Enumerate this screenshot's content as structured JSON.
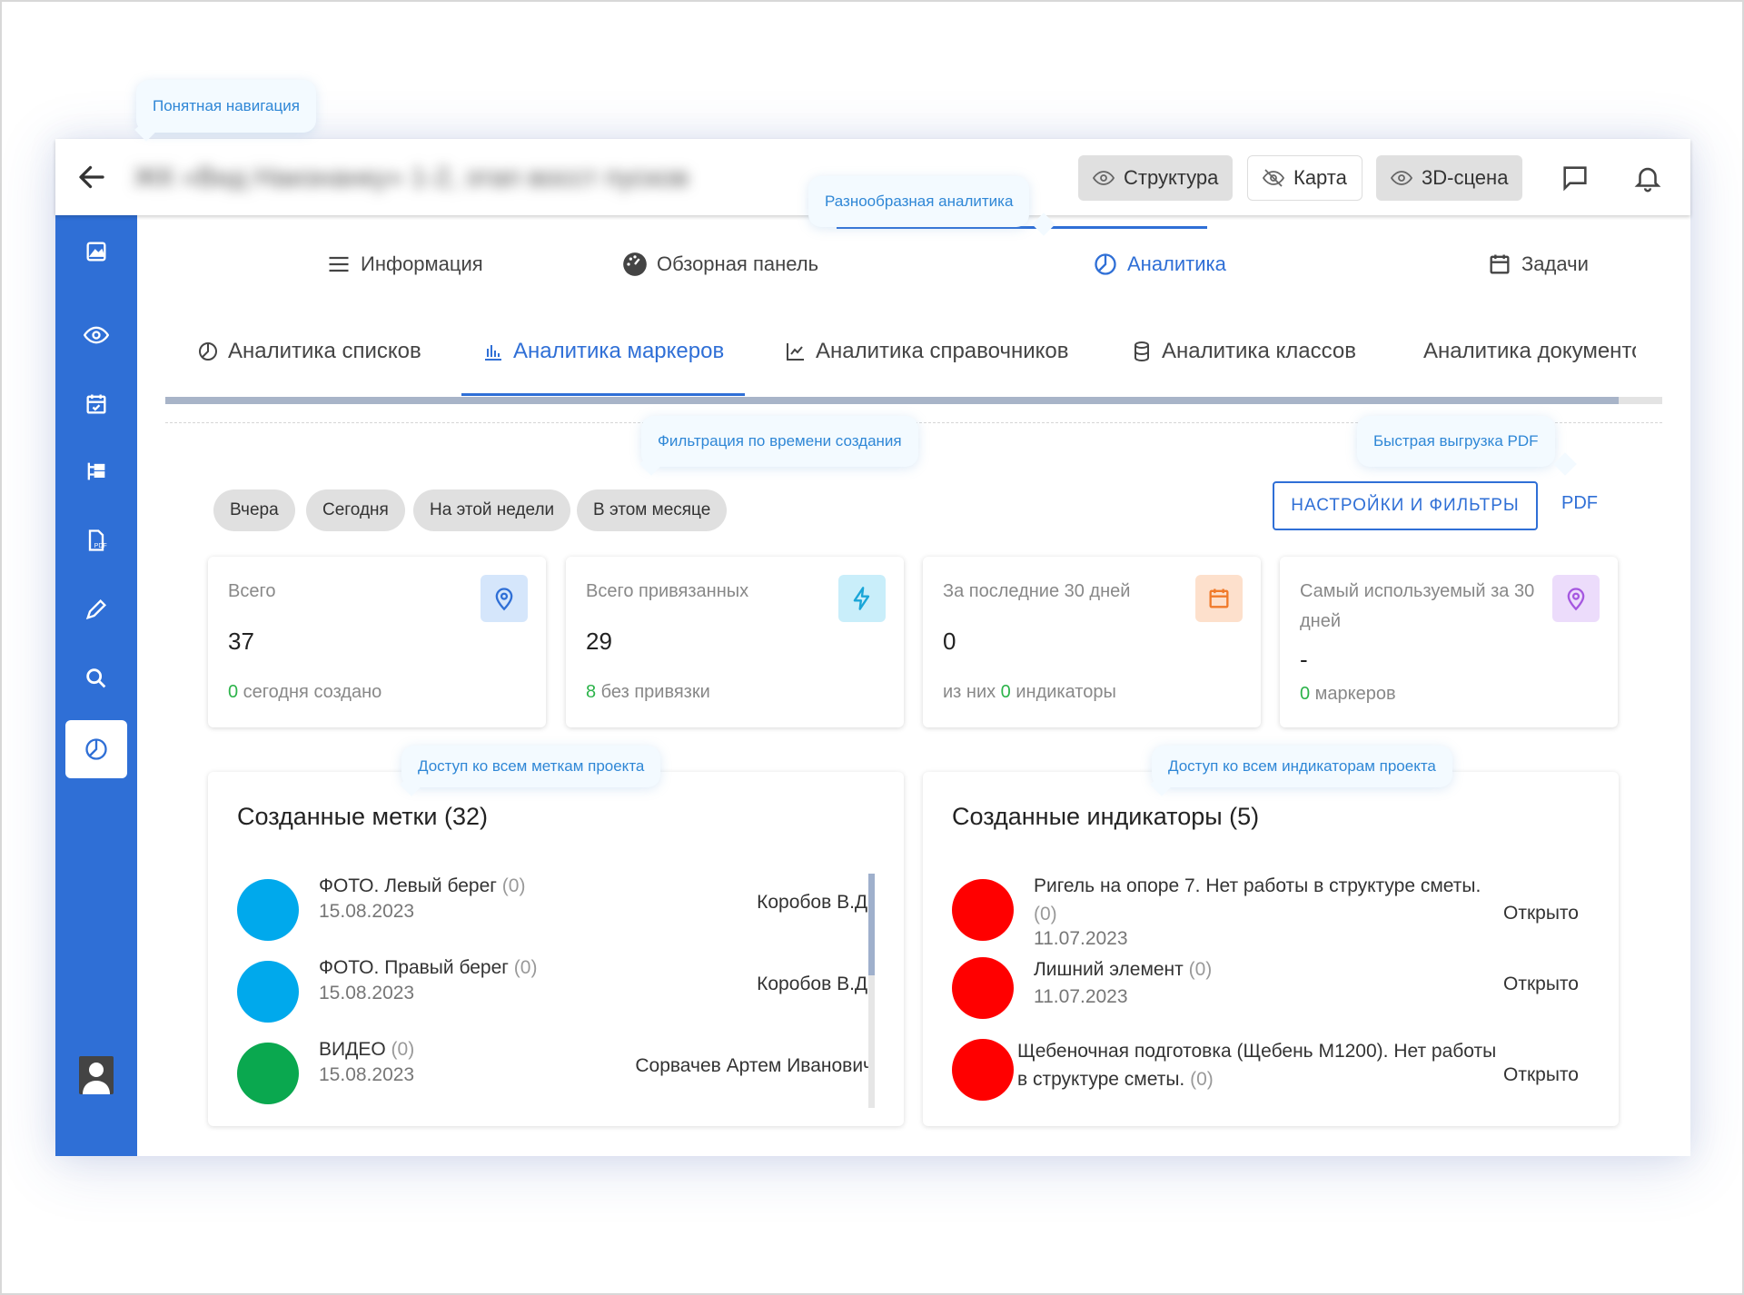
{
  "header": {
    "project_title": "ЖК «Вид Наизнанку» 1-2, этап восст пусков",
    "buttons": [
      {
        "label": "Структура",
        "icon": "eye-icon"
      },
      {
        "label": "Карта",
        "icon": "eye-off-icon"
      },
      {
        "label": "3D-сцена",
        "icon": "eye-icon"
      }
    ]
  },
  "sidebar": {
    "items": [
      "image-icon",
      "eye-icon",
      "calendar-check-icon",
      "tree-structure-icon",
      "pdf-file-icon",
      "pencil-icon",
      "search-icon",
      "pie-chart-icon"
    ]
  },
  "tabs_main": [
    {
      "label": "Информация",
      "icon": "menu-icon"
    },
    {
      "label": "Обзорная панель",
      "icon": "dashboard-icon"
    },
    {
      "label": "Аналитика",
      "icon": "pie-chart-icon",
      "active": true
    },
    {
      "label": "Задачи",
      "icon": "calendar-icon"
    }
  ],
  "tabs_analytics": [
    {
      "label": "Аналитика списков",
      "icon": "pie-chart-icon"
    },
    {
      "label": "Аналитика маркеров",
      "icon": "bar-chart-icon",
      "active": true
    },
    {
      "label": "Аналитика справочников",
      "icon": "line-chart-icon"
    },
    {
      "label": "Аналитика классов",
      "icon": "database-icon"
    },
    {
      "label": "Аналитика документо",
      "icon": "document-icon"
    }
  ],
  "filters": {
    "chips": [
      "Вчера",
      "Сегодня",
      "На этой недели",
      "В этом месяце"
    ],
    "settings_button": "НАСТРОЙКИ И ФИЛЬТРЫ",
    "pdf_button": "PDF"
  },
  "stats": [
    {
      "label": "Всего",
      "value": "37",
      "foot_num": "0",
      "foot_pre": "",
      "foot_text": " сегодня создано",
      "icon": "map-pin-icon",
      "icon_bg": "#d5e6fb",
      "icon_color": "#2f6fd6"
    },
    {
      "label": "Всего привязанных",
      "value": "29",
      "foot_num": "8",
      "foot_pre": "",
      "foot_text": " без привязки",
      "icon": "lightning-icon",
      "icon_bg": "#c9eefa",
      "icon_color": "#1aa6d8"
    },
    {
      "label": "За последние 30 дней",
      "value": "0",
      "foot_num": "0",
      "foot_pre": "из них ",
      "foot_text": " индикаторы",
      "icon": "calendar-icon",
      "icon_bg": "#fde0cc",
      "icon_color": "#f07a2a"
    },
    {
      "label": "Самый используемый за 30 дней",
      "value": "-",
      "foot_num": "0",
      "foot_pre": "",
      "foot_text": " маркеров",
      "icon": "map-pin-icon",
      "icon_bg": "#ecdcfb",
      "icon_color": "#a557e0"
    }
  ],
  "marks": {
    "title": "Созданные метки (32)",
    "items": [
      {
        "name": "ФОТО. Левый берег",
        "count": "(0)",
        "date": "15.08.2023",
        "author": "Коробов В.Д.",
        "color": "#00a9ec"
      },
      {
        "name": "ФОТО. Правый берег",
        "count": "(0)",
        "date": "15.08.2023",
        "author": "Коробов В.Д.",
        "color": "#00a9ec"
      },
      {
        "name": "ВИДЕО",
        "count": "(0)",
        "date": "15.08.2023",
        "author": "Сорвачев Артем Иванович",
        "color": "#0aa84f"
      }
    ]
  },
  "indicators": {
    "title": "Созданные индикаторы (5)",
    "items": [
      {
        "name": "Ригель на опоре 7. Нет работы в структуре сметы.",
        "count": "(0)",
        "date": "11.07.2023",
        "status": "Открыто",
        "color": "#ff0000"
      },
      {
        "name": "Лишний элемент",
        "count": "(0)",
        "date": "11.07.2023",
        "status": "Открыто",
        "color": "#ff0000"
      },
      {
        "name": "Щебеночная подготовка (Щебень М1200). Нет работы в структуре сметы.",
        "count": "(0)",
        "date": "",
        "status": "Открыто",
        "color": "#ff0000"
      }
    ]
  },
  "callouts": {
    "navigation": "Понятная навигация",
    "analytics": "Разнообразная аналитика",
    "time_filter": "Фильтрация по времени создания",
    "pdf_export": "Быстрая выгрузка PDF",
    "marks_access": "Доступ ко всем меткам проекта",
    "indicators_access": "Доступ ко всем индикаторам проекта"
  }
}
